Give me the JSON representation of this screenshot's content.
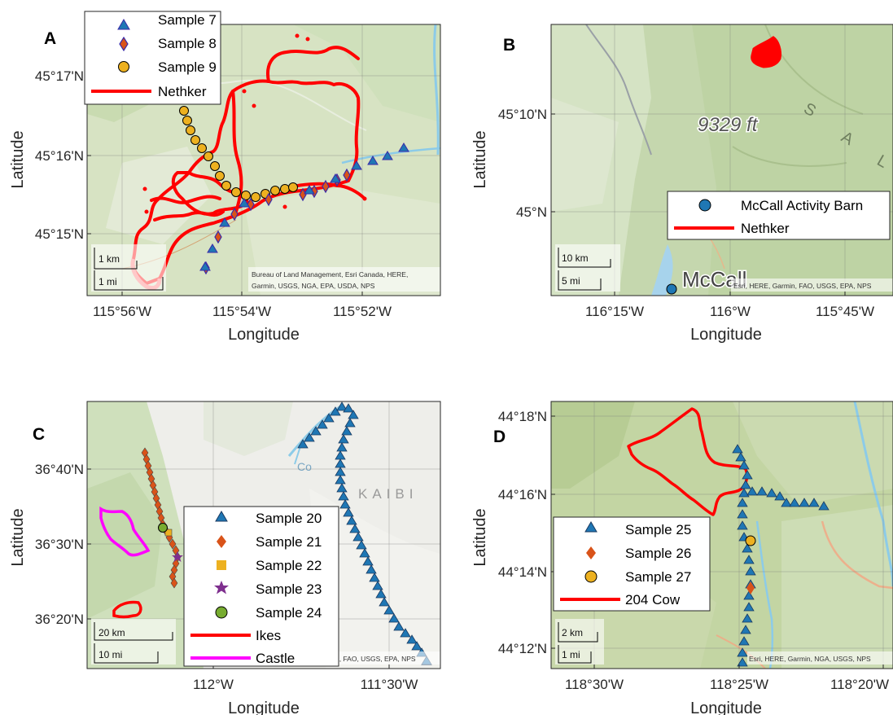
{
  "colors": {
    "blue": "#1f77b4",
    "orange": "#d95319",
    "gold": "#edb120",
    "purple": "#7e2f8e",
    "green": "#77ac30",
    "red": "#ff0000",
    "magenta": "#ff00ff"
  },
  "panels": [
    {
      "label": "A",
      "xlabel": "Longitude",
      "ylabel": "Latitude",
      "xticks": [
        "115°56'W",
        "115°54'W",
        "115°52'W"
      ],
      "yticks": [
        "45°17'N",
        "45°16'N",
        "45°15'N"
      ],
      "legend": [
        "Sample 7",
        "Sample 8",
        "Sample 9",
        "Nethker"
      ],
      "scale": [
        "1 km",
        "1 mi"
      ],
      "attribution": [
        "Bureau of Land Management, Esri Canada, HERE,",
        "Garmin, USGS, NGA, EPA, USDA, NPS"
      ]
    },
    {
      "label": "B",
      "xlabel": "Longitude",
      "ylabel": "Latitude",
      "xticks": [
        "116°15'W",
        "116°W",
        "115°45'W"
      ],
      "yticks": [
        "45°10'N",
        "45°N"
      ],
      "legend": [
        "McCall Activity Barn",
        "Nethker"
      ],
      "scale": [
        "10 km",
        "5 mi"
      ],
      "attribution": [
        "Esri, HERE, Garmin, FAO, USGS, EPA, NPS"
      ],
      "map_labels": [
        "9329 ft",
        "McCall"
      ]
    },
    {
      "label": "C",
      "xlabel": "Longitude",
      "ylabel": "Latitude",
      "xticks": [
        "112°W",
        "111°30'W"
      ],
      "yticks": [
        "36°40'N",
        "36°30'N",
        "36°20'N"
      ],
      "legend": [
        "Sample 20",
        "Sample 21",
        "Sample 22",
        "Sample 23",
        "Sample 24",
        "Ikes",
        "Castle"
      ],
      "scale": [
        "20 km",
        "10 mi"
      ],
      "attribution": [
        "n, FAO, USGS, EPA, NPS"
      ],
      "map_labels": [
        "KAIBI"
      ]
    },
    {
      "label": "D",
      "xlabel": "Longitude",
      "ylabel": "Latitude",
      "xticks": [
        "118°30'W",
        "118°25'W",
        "118°20'W"
      ],
      "yticks": [
        "44°18'N",
        "44°16'N",
        "44°14'N",
        "44°12'N"
      ],
      "legend": [
        "Sample 25",
        "Sample 26",
        "Sample 27",
        "204 Cow"
      ],
      "scale": [
        "2 km",
        "1 mi"
      ],
      "attribution": [
        "Esri, HERE, Garmin, NGA, USGS, NPS"
      ]
    }
  ]
}
